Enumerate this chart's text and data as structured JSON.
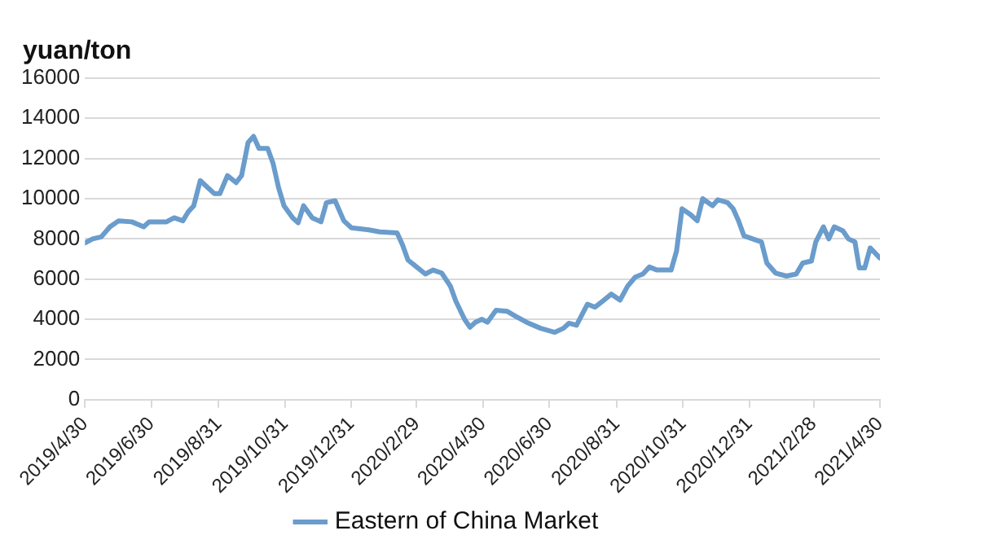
{
  "chart_data": {
    "type": "line",
    "ylabel": "yuan/ton",
    "ylim": [
      0,
      16000
    ],
    "yticks": [
      0,
      2000,
      4000,
      6000,
      8000,
      10000,
      12000,
      14000,
      16000
    ],
    "xlim": [
      "2019-04-30",
      "2021-04-30"
    ],
    "xticks": [
      {
        "value": "2019-04-30",
        "label": "2019/4/30"
      },
      {
        "value": "2019-06-30",
        "label": "2019/6/30"
      },
      {
        "value": "2019-08-31",
        "label": "2019/8/31"
      },
      {
        "value": "2019-10-31",
        "label": "2019/10/31"
      },
      {
        "value": "2019-12-31",
        "label": "2019/12/31"
      },
      {
        "value": "2020-02-29",
        "label": "2020/2/29"
      },
      {
        "value": "2020-04-30",
        "label": "2020/4/30"
      },
      {
        "value": "2020-06-30",
        "label": "2020/6/30"
      },
      {
        "value": "2020-08-31",
        "label": "2020/8/31"
      },
      {
        "value": "2020-10-31",
        "label": "2020/10/31"
      },
      {
        "value": "2020-12-31",
        "label": "2020/12/31"
      },
      {
        "value": "2021-02-28",
        "label": "2021/2/28"
      },
      {
        "value": "2021-04-30",
        "label": "2021/4/30"
      }
    ],
    "grid": "y",
    "legend": "bottom",
    "marker": "none",
    "line_style": "solid",
    "series": [
      {
        "name": "Eastern of China Market",
        "color": "#6a9ccc",
        "x": [
          "2019-04-30",
          "2019-05-07",
          "2019-05-15",
          "2019-05-23",
          "2019-05-31",
          "2019-06-12",
          "2019-06-23",
          "2019-06-28",
          "2019-07-14",
          "2019-07-21",
          "2019-07-29",
          "2019-08-03",
          "2019-08-08",
          "2019-08-14",
          "2019-08-21",
          "2019-08-27",
          "2019-09-01",
          "2019-09-08",
          "2019-09-16",
          "2019-09-21",
          "2019-09-27",
          "2019-10-02",
          "2019-10-07",
          "2019-10-15",
          "2019-10-20",
          "2019-10-25",
          "2019-10-30",
          "2019-11-07",
          "2019-11-12",
          "2019-11-17",
          "2019-11-25",
          "2019-12-03",
          "2019-12-08",
          "2019-12-16",
          "2019-12-24",
          "2019-12-31",
          "2020-01-16",
          "2020-01-26",
          "2020-02-11",
          "2020-02-16",
          "2020-02-21",
          "2020-02-29",
          "2020-03-08",
          "2020-03-15",
          "2020-03-23",
          "2020-03-31",
          "2020-04-05",
          "2020-04-13",
          "2020-04-18",
          "2020-04-23",
          "2020-04-29",
          "2020-05-04",
          "2020-05-12",
          "2020-05-22",
          "2020-05-30",
          "2020-06-09",
          "2020-06-22",
          "2020-07-05",
          "2020-07-13",
          "2020-07-18",
          "2020-07-25",
          "2020-08-04",
          "2020-08-11",
          "2020-08-18",
          "2020-08-26",
          "2020-09-03",
          "2020-09-10",
          "2020-09-17",
          "2020-09-24",
          "2020-09-30",
          "2020-10-07",
          "2020-10-20",
          "2020-10-25",
          "2020-10-30",
          "2020-11-07",
          "2020-11-13",
          "2020-11-18",
          "2020-11-27",
          "2020-12-02",
          "2020-12-11",
          "2020-12-16",
          "2020-12-21",
          "2020-12-26",
          "2021-01-03",
          "2021-01-11",
          "2021-01-16",
          "2021-01-24",
          "2021-02-03",
          "2021-02-12",
          "2021-02-18",
          "2021-02-26",
          "2021-03-02",
          "2021-03-09",
          "2021-03-14",
          "2021-03-19",
          "2021-03-27",
          "2021-04-01",
          "2021-04-07",
          "2021-04-11",
          "2021-04-16",
          "2021-04-21",
          "2021-04-30"
        ],
        "values": [
          7800,
          8000,
          8100,
          8600,
          8900,
          8850,
          8600,
          8850,
          8850,
          9050,
          8900,
          9350,
          9650,
          10900,
          10550,
          10250,
          10250,
          11150,
          10800,
          11150,
          12800,
          13100,
          12500,
          12500,
          11750,
          10550,
          9650,
          9050,
          8800,
          9650,
          9050,
          8850,
          9800,
          9900,
          8900,
          8550,
          8450,
          8350,
          8300,
          7700,
          6950,
          6600,
          6250,
          6450,
          6300,
          5650,
          4900,
          4000,
          3600,
          3850,
          4000,
          3850,
          4450,
          4400,
          4150,
          3850,
          3550,
          3350,
          3550,
          3800,
          3700,
          4750,
          4600,
          4900,
          5250,
          4950,
          5650,
          6100,
          6250,
          6600,
          6450,
          6450,
          7400,
          9500,
          9200,
          8900,
          10000,
          9650,
          9950,
          9800,
          9500,
          8900,
          8150,
          8000,
          7850,
          6800,
          6300,
          6150,
          6250,
          6800,
          6900,
          7850,
          8600,
          8000,
          8600,
          8400,
          8000,
          7850,
          6550,
          6550,
          7550,
          7050
        ]
      }
    ]
  }
}
